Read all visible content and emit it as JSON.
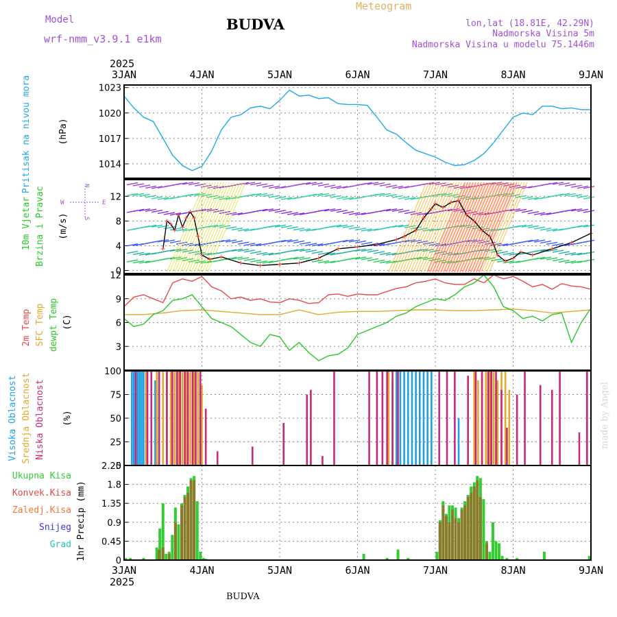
{
  "header": {
    "model_label": "Model",
    "model_name": "wrf-nmm_v3.9.1 e1km",
    "location": "BUDVA",
    "product": "Meteogram",
    "coords": "lon,lat (18.81E, 42.29N)",
    "elevation": "Nadmorska Visina 5m",
    "model_elevation": "Nadmorska Visina u modelu 75.1446m",
    "footer_location": "BUDVA",
    "credit": "made by Angel"
  },
  "colors": {
    "pressure": "#1ea9e6",
    "temp": "#e84848",
    "sfc_temp": "#e0a92a",
    "dewpt": "#28c828",
    "cloud_high": "#1ea0e6",
    "cloud_mid": "#e0a92a",
    "cloud_low": "#c8287a",
    "precip_total": "#33cc33",
    "precip_conv": "#8a7a2a",
    "wind_speed": "#000000",
    "wind_obs": "#ff4040",
    "wind_label": "#9a40d0"
  },
  "chart_data": {
    "type": "line",
    "x_axis": {
      "year": "2025",
      "ticks": [
        "3JAN",
        "4JAN",
        "5JAN",
        "6JAN",
        "7JAN",
        "8JAN",
        "9JAN"
      ],
      "range_days": [
        0,
        6
      ]
    },
    "panels": [
      {
        "id": "pressure",
        "ylabel_title": "Pritisak na nivou mora",
        "unit": "(hPa)",
        "ylim": [
          1012.3,
          1023.3
        ],
        "yticks": [
          "1014",
          "1017",
          "1020",
          "1023"
        ],
        "ytick_values": [
          1014,
          1017,
          1020,
          1023
        ],
        "series": [
          {
            "color_key": "pressure",
            "x": [
              0,
              0.125,
              0.25,
              0.375,
              0.5,
              0.625,
              0.75,
              0.875,
              1.0,
              1.125,
              1.25,
              1.375,
              1.5,
              1.625,
              1.75,
              1.875,
              2.0,
              2.125,
              2.25,
              2.375,
              2.5,
              2.625,
              2.75,
              2.875,
              3.0,
              3.125,
              3.25,
              3.375,
              3.5,
              3.625,
              3.75,
              3.875,
              4.0,
              4.125,
              4.25,
              4.375,
              4.5,
              4.625,
              4.75,
              4.875,
              5.0,
              5.125,
              5.25,
              5.375,
              5.5,
              5.625,
              5.75,
              5.875,
              6.0
            ],
            "values": [
              1022.0,
              1020.6,
              1019.5,
              1019.0,
              1017.0,
              1015.0,
              1013.8,
              1013.2,
              1013.7,
              1015.5,
              1018.0,
              1019.5,
              1019.8,
              1020.6,
              1020.8,
              1020.5,
              1021.5,
              1022.7,
              1022.0,
              1022.1,
              1021.7,
              1021.8,
              1021.1,
              1021.0,
              1021.0,
              1020.9,
              1019.5,
              1018.0,
              1017.5,
              1016.5,
              1015.6,
              1015.2,
              1014.8,
              1014.2,
              1013.8,
              1013.9,
              1014.4,
              1015.2,
              1016.5,
              1018.0,
              1019.5,
              1020.0,
              1019.8,
              1020.8,
              1020.8,
              1020.5,
              1020.6,
              1020.4,
              1020.4
            ]
          }
        ]
      },
      {
        "id": "wind",
        "ylabel_title": "10m Vjetar",
        "ylabel_sub": "Brzina i Pravac",
        "unit": "(m/s)",
        "compass_top": "N",
        "compass_left": "W",
        "compass_right": "E",
        "compass_bottom": "S",
        "ylim": [
          -0.5,
          14.7
        ],
        "yticks": [
          "0",
          "4",
          "8",
          "12"
        ],
        "ytick_values": [
          0,
          4,
          8,
          12
        ],
        "series": [
          {
            "color_key": "wind_speed",
            "x": [
              0.5,
              0.55,
              0.6,
              0.65,
              0.7,
              0.75,
              0.8,
              0.85,
              0.9,
              0.95,
              1.0,
              1.1,
              1.25,
              1.5,
              1.75,
              2.0,
              2.25,
              2.5,
              2.75,
              3.0,
              3.25,
              3.5,
              3.6,
              3.75,
              3.85,
              3.95,
              4.0,
              4.1,
              4.2,
              4.3,
              4.4,
              4.5,
              4.6,
              4.7,
              4.75,
              4.8,
              4.9,
              5.0,
              5.1,
              5.25,
              5.5,
              5.75,
              6.0
            ],
            "values": [
              3.5,
              8.0,
              7.5,
              6.5,
              9.0,
              7.0,
              8.5,
              9.5,
              8.5,
              5.5,
              2.5,
              1.8,
              2.2,
              1.2,
              0.8,
              1.0,
              1.2,
              2.0,
              3.5,
              3.8,
              4.2,
              5.0,
              5.5,
              6.5,
              8.5,
              10.0,
              10.8,
              10.2,
              11.0,
              11.3,
              9.0,
              8.0,
              6.5,
              5.5,
              4.2,
              2.5,
              1.5,
              2.0,
              3.0,
              2.5,
              3.5,
              4.5,
              6.0
            ]
          }
        ]
      },
      {
        "id": "temperature",
        "ylabel_title": "2m Temp",
        "ylabel_sfc": "SFC Temp",
        "ylabel_dewpt": "dewpt Temp",
        "unit": "(C)",
        "ylim": [
          0,
          12
        ],
        "yticks": [
          "3",
          "6",
          "9",
          "12"
        ],
        "ytick_values": [
          3,
          6,
          9,
          12
        ],
        "series": [
          {
            "color_key": "temp",
            "x": [
              0,
              0.125,
              0.25,
              0.375,
              0.5,
              0.625,
              0.75,
              0.875,
              1.0,
              1.125,
              1.25,
              1.375,
              1.5,
              1.625,
              1.75,
              1.875,
              2.0,
              2.125,
              2.25,
              2.375,
              2.5,
              2.625,
              2.75,
              2.875,
              3.0,
              3.125,
              3.25,
              3.375,
              3.5,
              3.625,
              3.75,
              3.875,
              4.0,
              4.125,
              4.25,
              4.375,
              4.5,
              4.625,
              4.75,
              4.875,
              5.0,
              5.125,
              5.25,
              5.375,
              5.5,
              5.625,
              5.75,
              5.875,
              6.0
            ],
            "values": [
              8.0,
              9.2,
              9.5,
              9.0,
              8.5,
              11.0,
              11.5,
              11.2,
              11.8,
              10.5,
              10.0,
              9.0,
              9.2,
              8.8,
              9.0,
              8.6,
              8.5,
              9.0,
              8.8,
              8.4,
              8.5,
              9.5,
              9.6,
              9.3,
              9.6,
              9.5,
              9.5,
              9.9,
              10.3,
              10.5,
              11.0,
              11.2,
              11.5,
              11.0,
              10.8,
              10.8,
              11.5,
              11.0,
              12.0,
              11.5,
              11.8,
              11.2,
              10.5,
              10.8,
              10.2,
              10.9,
              10.6,
              10.5,
              10.2
            ]
          },
          {
            "color_key": "sfc_temp",
            "x": [
              0,
              0.25,
              0.5,
              0.75,
              1.0,
              1.25,
              1.5,
              1.75,
              2.0,
              2.25,
              2.5,
              2.75,
              3.0,
              3.25,
              3.5,
              3.75,
              4.0,
              4.25,
              4.5,
              4.75,
              5.0,
              5.25,
              5.5,
              5.75,
              6.0
            ],
            "values": [
              7.0,
              7.0,
              7.2,
              7.5,
              7.6,
              7.4,
              7.2,
              7.0,
              7.0,
              7.6,
              7.0,
              7.3,
              7.4,
              7.4,
              7.5,
              7.6,
              7.6,
              7.5,
              7.5,
              7.6,
              7.7,
              7.5,
              7.2,
              7.4,
              7.6
            ]
          },
          {
            "color_key": "dewpt",
            "x": [
              0,
              0.125,
              0.25,
              0.375,
              0.5,
              0.625,
              0.75,
              0.875,
              1.0,
              1.125,
              1.25,
              1.375,
              1.5,
              1.625,
              1.75,
              1.875,
              2.0,
              2.125,
              2.25,
              2.375,
              2.5,
              2.625,
              2.75,
              2.875,
              3.0,
              3.125,
              3.25,
              3.375,
              3.5,
              3.625,
              3.75,
              3.875,
              4.0,
              4.125,
              4.25,
              4.375,
              4.5,
              4.625,
              4.75,
              4.875,
              5.0,
              5.125,
              5.25,
              5.375,
              5.5,
              5.625,
              5.75,
              5.875,
              6.0
            ],
            "values": [
              6.5,
              5.5,
              5.8,
              7.0,
              7.5,
              8.8,
              9.0,
              9.5,
              8.0,
              6.5,
              6.0,
              5.5,
              4.5,
              3.5,
              3.0,
              4.5,
              4.2,
              2.5,
              3.5,
              2.2,
              1.2,
              1.8,
              2.0,
              2.8,
              4.5,
              5.0,
              5.5,
              6.0,
              6.8,
              7.2,
              8.0,
              8.5,
              9.0,
              8.8,
              9.5,
              10.5,
              11.0,
              12.0,
              10.5,
              8.0,
              7.5,
              6.5,
              6.8,
              6.2,
              7.0,
              7.2,
              3.5,
              6.0,
              7.8
            ]
          }
        ]
      },
      {
        "id": "clouds",
        "ylabel_high": "Visoka Oblacnost",
        "ylabel_mid": "Srednja Oblacnost",
        "ylabel_low": "Niska Oblacnost",
        "unit": "(%)",
        "ylim": [
          0,
          100
        ],
        "yticks": [
          "0",
          "25",
          "50",
          "75",
          "100"
        ],
        "ytick_values": [
          0,
          25,
          50,
          75,
          100
        ],
        "series": [
          {
            "color_key": "cloud_high",
            "x": [
              0.1,
              0.125,
              0.15,
              0.175,
              0.2,
              0.225,
              0.25,
              0.4,
              0.45,
              3.45,
              3.5,
              3.55,
              3.6,
              3.65,
              3.7,
              3.75,
              3.8,
              3.85,
              3.9,
              3.95,
              4.3
            ],
            "values": [
              100,
              100,
              100,
              100,
              100,
              100,
              100,
              90,
              100,
              90,
              100,
              100,
              100,
              100,
              100,
              100,
              100,
              100,
              100,
              100,
              50
            ]
          },
          {
            "color_key": "cloud_mid",
            "x": [
              0.15,
              0.28,
              0.42,
              0.5,
              0.55,
              0.6,
              0.65,
              0.7,
              0.75,
              0.8,
              0.85,
              0.9,
              0.95,
              1.0,
              3.4,
              4.5,
              4.55,
              4.6,
              4.65,
              4.7,
              4.75,
              4.8,
              4.85,
              4.9,
              4.95
            ],
            "values": [
              40,
              100,
              100,
              100,
              100,
              100,
              100,
              100,
              100,
              100,
              100,
              100,
              100,
              85,
              100,
              100,
              90,
              100,
              100,
              100,
              100,
              90,
              100,
              100,
              80
            ]
          },
          {
            "color_key": "cloud_low",
            "x": [
              0.15,
              0.3,
              0.35,
              0.45,
              0.55,
              0.62,
              0.68,
              0.72,
              0.78,
              0.82,
              0.88,
              0.92,
              0.98,
              1.05,
              1.2,
              1.65,
              2.05,
              2.35,
              2.4,
              2.55,
              2.7,
              3.15,
              3.25,
              3.32,
              3.38,
              3.45,
              3.52,
              4.05,
              4.15,
              4.25,
              4.42,
              4.52,
              4.6,
              4.68,
              4.72,
              4.78,
              4.85,
              4.92,
              5.05,
              5.15,
              5.35,
              5.5,
              5.6,
              5.85,
              5.95
            ],
            "values": [
              100,
              100,
              100,
              100,
              100,
              100,
              100,
              100,
              100,
              100,
              100,
              100,
              100,
              60,
              15,
              20,
              45,
              75,
              80,
              10,
              100,
              100,
              100,
              100,
              100,
              100,
              100,
              100,
              100,
              100,
              95,
              100,
              100,
              100,
              100,
              100,
              80,
              40,
              75,
              100,
              85,
              80,
              100,
              35,
              100
            ]
          }
        ]
      },
      {
        "id": "precip",
        "legend": [
          "Ukupna Kisa",
          "Konvek.Kisa",
          "Zaledj.Kisa",
          "Snijeg",
          "Grad"
        ],
        "legend_color_keys": [
          "precip_total",
          "temp",
          "sfc_temp",
          "cloud_high",
          "pressure"
        ],
        "ylabel_title": "1hr Precip",
        "unit": "(mm)",
        "ylim": [
          0,
          2.25
        ],
        "yticks": [
          "0",
          "0.45",
          "0.9",
          "1.35",
          "1.8",
          "2.25"
        ],
        "ytick_values": [
          0,
          0.45,
          0.9,
          1.35,
          1.8,
          2.25
        ],
        "series": [
          {
            "color_key": "precip_total",
            "x": [
              0.02,
              0.08,
              0.25,
              0.42,
              0.46,
              0.5,
              0.54,
              0.58,
              0.62,
              0.66,
              0.7,
              0.74,
              0.78,
              0.82,
              0.86,
              0.9,
              0.94,
              0.98,
              1.02,
              1.05,
              3.08,
              3.38,
              3.52,
              3.65,
              4.02,
              4.06,
              4.1,
              4.14,
              4.18,
              4.22,
              4.26,
              4.3,
              4.34,
              4.38,
              4.42,
              4.46,
              4.5,
              4.54,
              4.58,
              4.62,
              4.66,
              4.7,
              4.74,
              4.78,
              4.82,
              4.86,
              4.92,
              5.05,
              5.4,
              5.98
            ],
            "values": [
              0.05,
              0.05,
              0.05,
              0.3,
              0.75,
              1.35,
              0.15,
              0.2,
              0.6,
              1.25,
              0.85,
              1.35,
              1.55,
              1.75,
              1.95,
              2.0,
              1.4,
              0.2,
              0.05,
              0.03,
              0.15,
              0.05,
              0.25,
              0.05,
              0.2,
              0.95,
              1.4,
              1.1,
              1.3,
              1.3,
              1.25,
              1.0,
              1.25,
              1.4,
              1.55,
              1.75,
              1.85,
              2.0,
              1.95,
              1.45,
              0.45,
              0.2,
              0.9,
              0.45,
              0.4,
              0.1,
              0.05,
              0.05,
              0.2,
              0.1
            ]
          },
          {
            "color_key": "precip_conv",
            "x": [
              0.45,
              0.5,
              0.58,
              0.66,
              0.74,
              0.78,
              0.82,
              0.86,
              0.9,
              4.06,
              4.1,
              4.14,
              4.18,
              4.22,
              4.26,
              4.3,
              4.34,
              4.38,
              4.42,
              4.46,
              4.5,
              4.54,
              4.58,
              4.66
            ],
            "values": [
              0.25,
              0.3,
              0.15,
              0.9,
              1.3,
              1.5,
              1.6,
              1.9,
              1.9,
              0.9,
              1.3,
              1.05,
              0.9,
              1.2,
              1.0,
              0.9,
              1.2,
              1.3,
              1.5,
              1.6,
              1.75,
              1.9,
              1.5,
              0.4
            ]
          }
        ]
      }
    ]
  }
}
